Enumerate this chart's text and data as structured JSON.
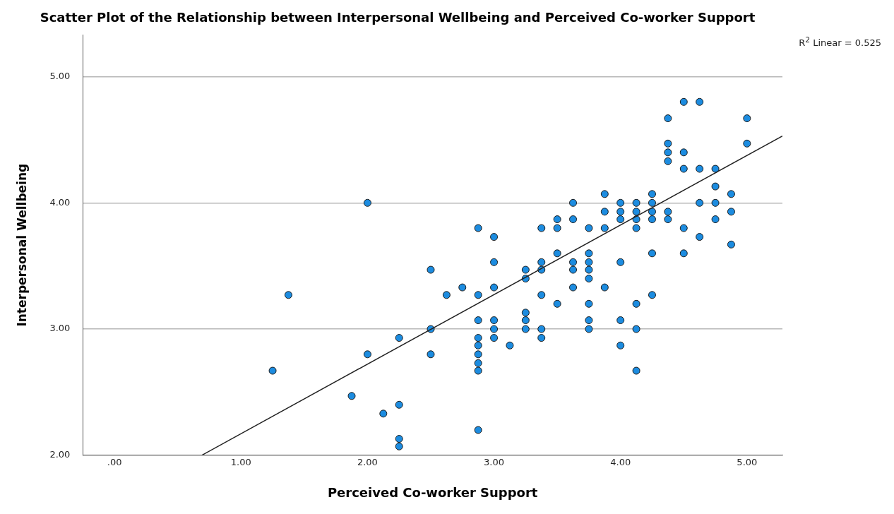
{
  "chart_data": {
    "type": "scatter",
    "title": "Scatter Plot of the Relationship between Interpersonal Wellbeing and Perceived Co-worker Support",
    "xlabel": "Perceived Co-worker Support",
    "ylabel": "Interpersonal Wellbeing",
    "annotations": [
      "R$^{2}$ Linear = 0.525"
    ],
    "xlim": [
      -0.25,
      5.28
    ],
    "ylim": [
      2,
      5.33
    ],
    "xticks": [
      {
        "value": 0,
        "label": ".00"
      },
      {
        "value": 1,
        "label": "1.00"
      },
      {
        "value": 2,
        "label": "2.00"
      },
      {
        "value": 3,
        "label": "3.00"
      },
      {
        "value": 4,
        "label": "4.00"
      },
      {
        "value": 5,
        "label": "5.00"
      }
    ],
    "yticks": [
      {
        "value": 2,
        "label": "2.00"
      },
      {
        "value": 3,
        "label": "3.00"
      },
      {
        "value": 4,
        "label": "4.00"
      },
      {
        "value": 5,
        "label": "5.00"
      }
    ],
    "grid": "y",
    "legend": false,
    "marker": "circle",
    "series": [
      {
        "type": "scatter",
        "color": "#1c8ce0",
        "x": [
          1.25,
          1.375,
          1.875,
          2,
          2,
          2.125,
          2.25,
          2.25,
          2.25,
          2.25,
          2.5,
          2.5,
          2.5,
          2.625,
          2.75,
          2.875,
          2.875,
          2.875,
          2.875,
          2.875,
          2.875,
          2.875,
          2.875,
          2.875,
          3,
          3,
          3,
          3,
          3,
          3,
          3.125,
          3.25,
          3.25,
          3.25,
          3.25,
          3.25,
          3.375,
          3.375,
          3.375,
          3.375,
          3.375,
          3.375,
          3.5,
          3.5,
          3.5,
          3.5,
          3.625,
          3.625,
          3.625,
          3.625,
          3.625,
          3.75,
          3.75,
          3.75,
          3.75,
          3.75,
          3.75,
          3.75,
          3.75,
          3.875,
          3.875,
          3.875,
          3.875,
          4,
          4,
          4,
          4,
          4,
          4,
          4.125,
          4.125,
          4.125,
          4.125,
          4.125,
          4.125,
          4.125,
          4.25,
          4.25,
          4.25,
          4.25,
          4.25,
          4.25,
          4.375,
          4.375,
          4.375,
          4.375,
          4.375,
          4.375,
          4.5,
          4.5,
          4.5,
          4.5,
          4.5,
          4.625,
          4.625,
          4.625,
          4.625,
          4.75,
          4.75,
          4.75,
          4.75,
          4.875,
          4.875,
          4.875,
          5,
          5
        ],
        "values": [
          2.67,
          3.27,
          2.47,
          4,
          2.8,
          2.33,
          2.93,
          2.4,
          2.13,
          2.07,
          3.47,
          3,
          2.8,
          3.27,
          3.33,
          3.8,
          3.27,
          3.07,
          2.93,
          2.87,
          2.8,
          2.73,
          2.67,
          2.2,
          3.73,
          3.53,
          3.33,
          3.07,
          3,
          2.93,
          2.87,
          3.47,
          3.4,
          3.13,
          3.07,
          3,
          3.8,
          3.53,
          3.47,
          3.27,
          3,
          2.93,
          3.87,
          3.8,
          3.6,
          3.2,
          4,
          3.87,
          3.53,
          3.47,
          3.33,
          3.8,
          3.6,
          3.53,
          3.47,
          3.4,
          3.2,
          3.07,
          3,
          4.07,
          3.93,
          3.8,
          3.33,
          4,
          3.93,
          3.87,
          3.53,
          3.07,
          2.87,
          4,
          3.93,
          3.87,
          3.8,
          3.2,
          3,
          2.67,
          4.07,
          4,
          3.93,
          3.87,
          3.6,
          3.27,
          4.67,
          4.47,
          4.4,
          4.33,
          3.93,
          3.87,
          4.8,
          4.4,
          4.27,
          3.8,
          3.6,
          4.8,
          4.27,
          4,
          3.73,
          4.27,
          4.13,
          4,
          3.87,
          4.07,
          3.93,
          3.67,
          4.67,
          4.47
        ]
      },
      {
        "type": "line",
        "color": "#222222",
        "x": [
          0.69,
          5.28
        ],
        "values": [
          2,
          4.53
        ],
        "marker": "none"
      }
    ]
  }
}
